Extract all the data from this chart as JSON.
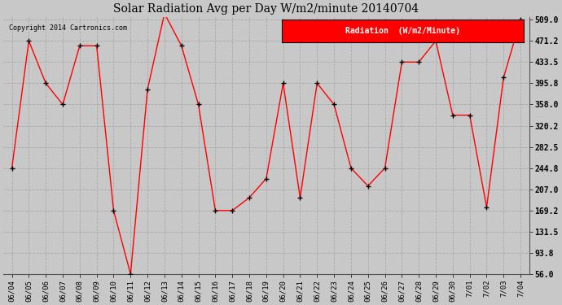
{
  "title": "Solar Radiation Avg per Day W/m2/minute 20140704",
  "copyright_text": "Copyright 2014 Cartronics.com",
  "legend_label": "Radiation  (W/m2/Minute)",
  "dates": [
    "06/04",
    "06/05",
    "06/06",
    "06/07",
    "06/08",
    "06/09",
    "06/10",
    "06/11",
    "06/12",
    "06/13",
    "06/14",
    "06/15",
    "06/16",
    "06/17",
    "06/18",
    "06/19",
    "06/20",
    "06/21",
    "06/22",
    "06/23",
    "06/24",
    "06/25",
    "06/26",
    "06/27",
    "06/28",
    "06/29",
    "06/30",
    "7/01",
    "7/02",
    "7/03",
    "7/04"
  ],
  "values": [
    244.8,
    471.2,
    395.8,
    358.0,
    462.5,
    462.5,
    169.2,
    56.0,
    385.0,
    520.0,
    462.5,
    358.0,
    169.2,
    169.2,
    192.0,
    226.0,
    395.8,
    192.0,
    395.8,
    358.0,
    244.8,
    213.0,
    244.8,
    433.5,
    433.5,
    471.2,
    339.0,
    339.0,
    175.0,
    406.0,
    509.0
  ],
  "line_color": "red",
  "marker_color": "black",
  "bg_color": "#c8c8c8",
  "plot_bg_color": "#c8c8c8",
  "grid_color": "#aaaaaa",
  "yticks": [
    56.0,
    93.8,
    131.5,
    169.2,
    207.0,
    244.8,
    282.5,
    320.2,
    358.0,
    395.8,
    433.5,
    471.2,
    509.0
  ],
  "ylim": [
    56.0,
    509.0
  ],
  "title_fontsize": 11,
  "legend_bg": "red",
  "legend_text_color": "white"
}
